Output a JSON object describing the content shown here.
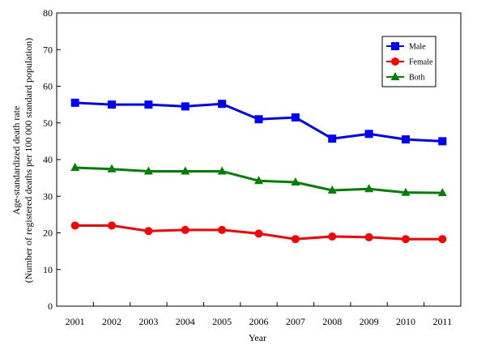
{
  "chart_data": {
    "type": "line",
    "title": "",
    "xlabel": "Year",
    "ylabel_line1": "Age-standardized death rate",
    "ylabel_line2": "(Number of registered deaths per 100 000 standard population)",
    "ylim": [
      0,
      80
    ],
    "yticks": [
      0,
      10,
      20,
      30,
      40,
      50,
      60,
      70,
      80
    ],
    "categories": [
      "2001",
      "2002",
      "2003",
      "2004",
      "2005",
      "2006",
      "2007",
      "2008",
      "2009",
      "2010",
      "2011"
    ],
    "grid": false,
    "legend_position": "top-right",
    "series": [
      {
        "name": "Male",
        "color": "#0000ff",
        "marker": "square",
        "values": [
          55.5,
          55.0,
          55.0,
          54.5,
          55.2,
          51.0,
          51.5,
          45.7,
          47.0,
          45.5,
          45.0
        ]
      },
      {
        "name": "Female",
        "color": "#ff0000",
        "marker": "circle",
        "values": [
          22.0,
          22.0,
          20.5,
          20.8,
          20.8,
          19.8,
          18.3,
          19.0,
          18.8,
          18.3,
          18.3
        ]
      },
      {
        "name": "Both",
        "color": "#008000",
        "marker": "triangle",
        "values": [
          37.8,
          37.4,
          36.8,
          36.8,
          36.8,
          34.2,
          33.8,
          31.6,
          32.0,
          31.0,
          30.9
        ]
      }
    ]
  }
}
